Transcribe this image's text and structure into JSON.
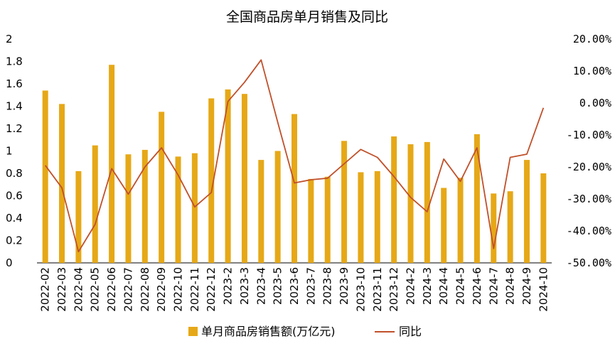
{
  "chart_data": {
    "type": "bar+line",
    "title": "全国商品房单月销售及同比",
    "categories": [
      "2022-02",
      "2022-03",
      "2022-04",
      "2022-05",
      "2022-06",
      "2022-07",
      "2022-08",
      "2022-09",
      "2022-10",
      "2022-11",
      "2022-12",
      "2023-2",
      "2023-3",
      "2023-4",
      "2023-5",
      "2023-6",
      "2023-7",
      "2023-8",
      "2023-9",
      "2023-10",
      "2023-11",
      "2023-12",
      "2024-2",
      "2024-3",
      "2024-4",
      "2024-5",
      "2024-6",
      "2024-7",
      "2024-8",
      "2024-9",
      "2024-10"
    ],
    "series": [
      {
        "name": "单月商品房销售额(万亿元)",
        "type": "bar",
        "axis": "left",
        "color": "#E6A817",
        "values": [
          1.54,
          1.42,
          0.82,
          1.05,
          1.77,
          0.97,
          1.01,
          1.35,
          0.95,
          0.98,
          1.47,
          1.55,
          1.51,
          0.92,
          1.0,
          1.33,
          0.75,
          0.77,
          1.09,
          0.81,
          0.82,
          1.13,
          1.06,
          1.08,
          0.67,
          0.76,
          1.15,
          0.62,
          0.64,
          0.92,
          0.8
        ]
      },
      {
        "name": "同比",
        "type": "line",
        "axis": "right",
        "color": "#C0502A",
        "values": [
          -19.5,
          -26.5,
          -46.5,
          -38.0,
          -20.5,
          -28.5,
          -20.0,
          -14.0,
          -22.5,
          -32.5,
          -28.0,
          0.5,
          6.5,
          13.5,
          -6.0,
          -25.0,
          -24.0,
          -23.5,
          -19.0,
          -14.5,
          -17.0,
          -23.0,
          -29.5,
          -34.0,
          -17.5,
          -24.5,
          -14.0,
          -45.5,
          -17.0,
          -16.0,
          -1.5
        ]
      }
    ],
    "y_left": {
      "lim": [
        0,
        2
      ],
      "ticks": [
        "0",
        "0.2",
        "0.4",
        "0.6",
        "0.8",
        "1",
        "1.2",
        "1.4",
        "1.6",
        "1.8",
        "2"
      ]
    },
    "y_right": {
      "lim": [
        -50,
        20
      ],
      "ticks": [
        "-50.00%",
        "-40.00%",
        "-30.00%",
        "-20.00%",
        "-10.00%",
        "0.00%",
        "10.00%",
        "20.00%"
      ]
    },
    "legend_position": "bottom",
    "grid": false
  }
}
